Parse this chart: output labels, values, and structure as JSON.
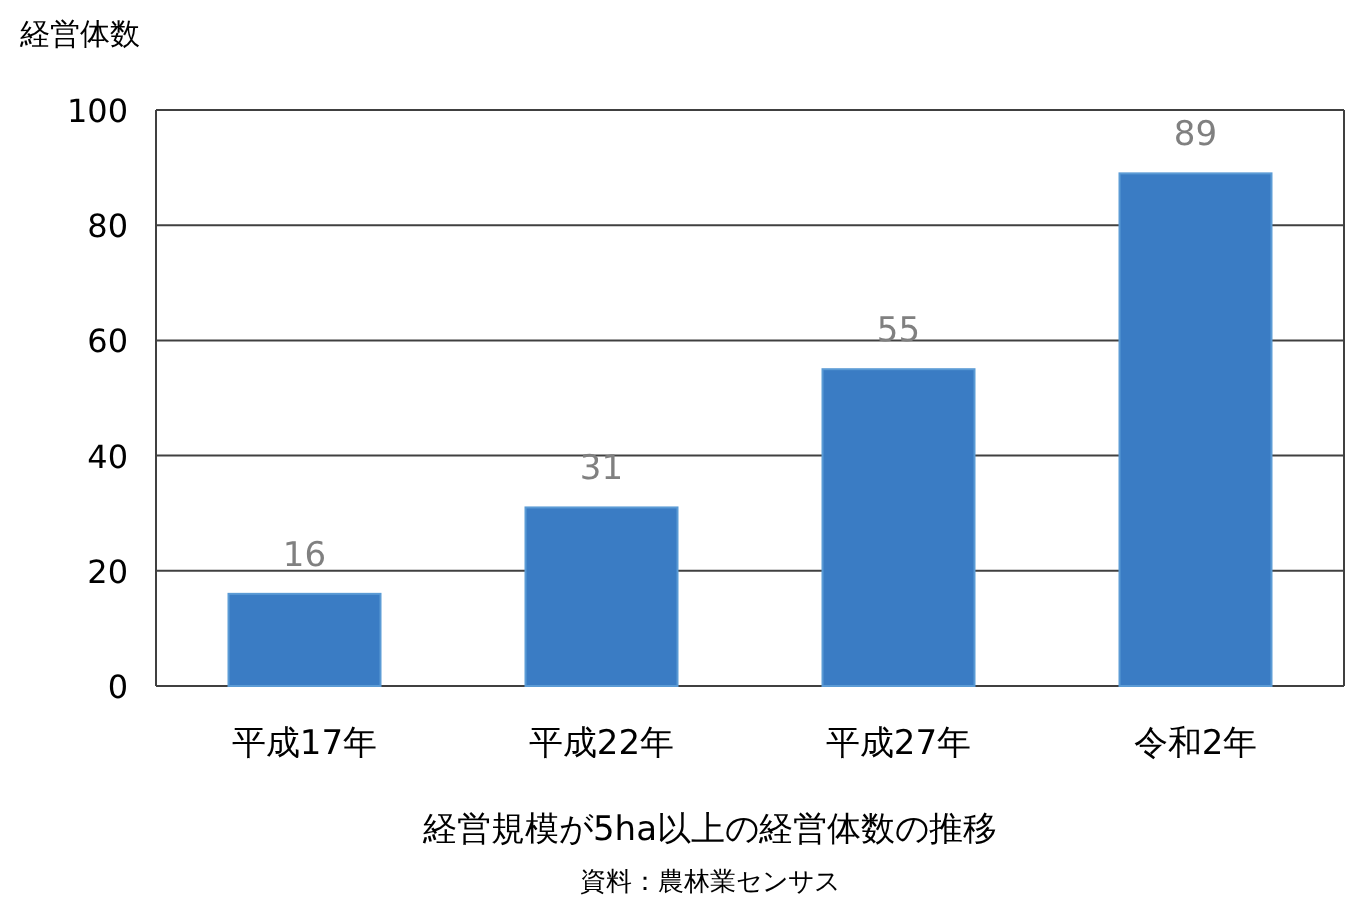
{
  "chart_data": {
    "type": "bar",
    "title": "経営規模が5ha以上の経営体数の推移",
    "ylabel": "経営体数",
    "annotations": [
      "資料：農林業センサス"
    ],
    "categories": [
      "平成17年",
      "平成22年",
      "平成27年",
      "令和2年"
    ],
    "values": [
      16,
      31,
      55,
      89
    ],
    "color": "#3a7cc4",
    "ylim": [
      0,
      100
    ],
    "yticks": [
      0,
      20,
      40,
      60,
      80,
      100
    ],
    "grid": "y",
    "data_labels": true
  }
}
